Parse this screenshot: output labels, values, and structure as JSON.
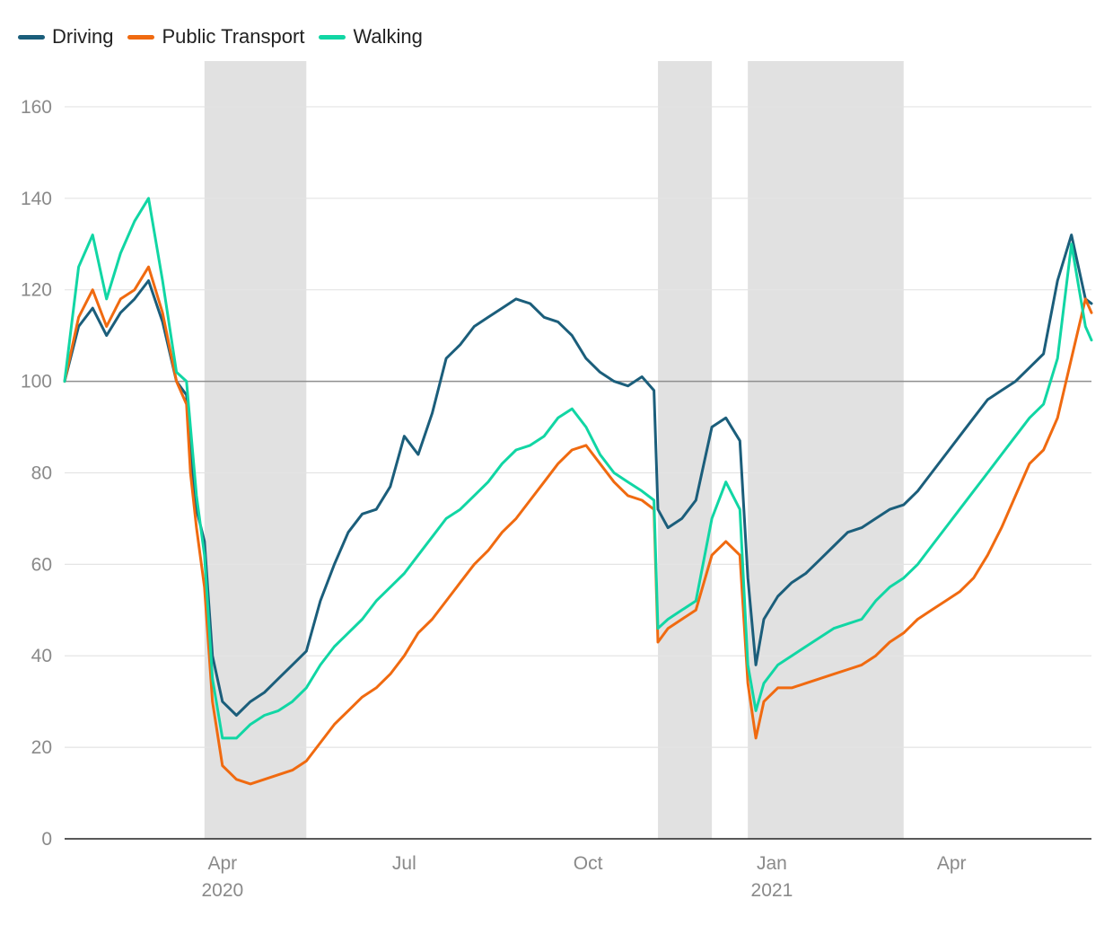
{
  "chart_data": {
    "type": "line",
    "title": "",
    "xlabel": "",
    "ylabel": "",
    "x_start": "2020-01-13",
    "x_end": "2021-06-10",
    "ylim": [
      0,
      170
    ],
    "yticks": [
      0,
      20,
      40,
      60,
      80,
      100,
      120,
      140,
      160
    ],
    "xticks": [
      {
        "date": "2020-04-01",
        "label": "Apr",
        "sublabel": "2020"
      },
      {
        "date": "2020-07-01",
        "label": "Jul",
        "sublabel": ""
      },
      {
        "date": "2020-10-01",
        "label": "Oct",
        "sublabel": ""
      },
      {
        "date": "2021-01-01",
        "label": "Jan",
        "sublabel": "2021"
      },
      {
        "date": "2021-04-01",
        "label": "Apr",
        "sublabel": ""
      }
    ],
    "baseline": 100,
    "grid": true,
    "legend_position": "top-left",
    "shaded_periods": [
      {
        "start": "2020-03-23",
        "end": "2020-05-13"
      },
      {
        "start": "2020-11-05",
        "end": "2020-12-02"
      },
      {
        "start": "2020-12-20",
        "end": "2021-03-08"
      }
    ],
    "series": [
      {
        "name": "Driving",
        "color": "#1b5e7b",
        "x": [
          "2020-01-13",
          "2020-01-20",
          "2020-01-27",
          "2020-02-03",
          "2020-02-10",
          "2020-02-17",
          "2020-02-24",
          "2020-03-02",
          "2020-03-09",
          "2020-03-14",
          "2020-03-16",
          "2020-03-19",
          "2020-03-23",
          "2020-03-27",
          "2020-04-01",
          "2020-04-08",
          "2020-04-15",
          "2020-04-22",
          "2020-04-29",
          "2020-05-06",
          "2020-05-13",
          "2020-05-20",
          "2020-05-27",
          "2020-06-03",
          "2020-06-10",
          "2020-06-17",
          "2020-06-24",
          "2020-07-01",
          "2020-07-08",
          "2020-07-15",
          "2020-07-22",
          "2020-07-29",
          "2020-08-05",
          "2020-08-12",
          "2020-08-19",
          "2020-08-26",
          "2020-09-02",
          "2020-09-09",
          "2020-09-16",
          "2020-09-23",
          "2020-09-30",
          "2020-10-07",
          "2020-10-14",
          "2020-10-21",
          "2020-10-28",
          "2020-11-03",
          "2020-11-05",
          "2020-11-10",
          "2020-11-17",
          "2020-11-24",
          "2020-12-02",
          "2020-12-09",
          "2020-12-16",
          "2020-12-20",
          "2020-12-24",
          "2020-12-28",
          "2021-01-04",
          "2021-01-11",
          "2021-01-18",
          "2021-01-25",
          "2021-02-01",
          "2021-02-08",
          "2021-02-15",
          "2021-02-22",
          "2021-03-01",
          "2021-03-08",
          "2021-03-15",
          "2021-03-22",
          "2021-03-29",
          "2021-04-05",
          "2021-04-12",
          "2021-04-19",
          "2021-04-26",
          "2021-05-03",
          "2021-05-10",
          "2021-05-17",
          "2021-05-24",
          "2021-05-31",
          "2021-06-07",
          "2021-06-10"
        ],
        "values": [
          100,
          112,
          116,
          110,
          115,
          118,
          122,
          113,
          100,
          97,
          85,
          72,
          65,
          40,
          30,
          27,
          30,
          32,
          35,
          38,
          41,
          52,
          60,
          67,
          71,
          72,
          77,
          88,
          84,
          93,
          105,
          108,
          112,
          114,
          116,
          118,
          117,
          114,
          113,
          110,
          105,
          102,
          100,
          99,
          101,
          98,
          72,
          68,
          70,
          74,
          90,
          92,
          87,
          57,
          38,
          48,
          53,
          56,
          58,
          61,
          64,
          67,
          68,
          70,
          72,
          73,
          76,
          80,
          84,
          88,
          92,
          96,
          98,
          100,
          103,
          106,
          122,
          132,
          118,
          117
        ]
      },
      {
        "name": "Public Transport",
        "color": "#f06a10",
        "x": [
          "2020-01-13",
          "2020-01-20",
          "2020-01-27",
          "2020-02-03",
          "2020-02-10",
          "2020-02-17",
          "2020-02-24",
          "2020-03-02",
          "2020-03-09",
          "2020-03-14",
          "2020-03-16",
          "2020-03-19",
          "2020-03-23",
          "2020-03-27",
          "2020-04-01",
          "2020-04-08",
          "2020-04-15",
          "2020-04-22",
          "2020-04-29",
          "2020-05-06",
          "2020-05-13",
          "2020-05-20",
          "2020-05-27",
          "2020-06-03",
          "2020-06-10",
          "2020-06-17",
          "2020-06-24",
          "2020-07-01",
          "2020-07-08",
          "2020-07-15",
          "2020-07-22",
          "2020-07-29",
          "2020-08-05",
          "2020-08-12",
          "2020-08-19",
          "2020-08-26",
          "2020-09-02",
          "2020-09-09",
          "2020-09-16",
          "2020-09-23",
          "2020-09-30",
          "2020-10-07",
          "2020-10-14",
          "2020-10-21",
          "2020-10-28",
          "2020-11-03",
          "2020-11-05",
          "2020-11-10",
          "2020-11-17",
          "2020-11-24",
          "2020-12-02",
          "2020-12-09",
          "2020-12-16",
          "2020-12-20",
          "2020-12-24",
          "2020-12-28",
          "2021-01-04",
          "2021-01-11",
          "2021-01-18",
          "2021-01-25",
          "2021-02-01",
          "2021-02-08",
          "2021-02-15",
          "2021-02-22",
          "2021-03-01",
          "2021-03-08",
          "2021-03-15",
          "2021-03-22",
          "2021-03-29",
          "2021-04-05",
          "2021-04-12",
          "2021-04-19",
          "2021-04-26",
          "2021-05-03",
          "2021-05-10",
          "2021-05-17",
          "2021-05-24",
          "2021-05-31",
          "2021-06-07",
          "2021-06-10"
        ],
        "values": [
          100,
          114,
          120,
          112,
          118,
          120,
          125,
          115,
          100,
          95,
          80,
          68,
          55,
          30,
          16,
          13,
          12,
          13,
          14,
          15,
          17,
          21,
          25,
          28,
          31,
          33,
          36,
          40,
          45,
          48,
          52,
          56,
          60,
          63,
          67,
          70,
          74,
          78,
          82,
          85,
          86,
          82,
          78,
          75,
          74,
          72,
          43,
          46,
          48,
          50,
          62,
          65,
          62,
          34,
          22,
          30,
          33,
          33,
          34,
          35,
          36,
          37,
          38,
          40,
          43,
          45,
          48,
          50,
          52,
          54,
          57,
          62,
          68,
          75,
          82,
          85,
          92,
          105,
          118,
          115
        ]
      },
      {
        "name": "Walking",
        "color": "#11d6a4",
        "x": [
          "2020-01-13",
          "2020-01-20",
          "2020-01-27",
          "2020-02-03",
          "2020-02-10",
          "2020-02-17",
          "2020-02-24",
          "2020-03-02",
          "2020-03-09",
          "2020-03-14",
          "2020-03-16",
          "2020-03-19",
          "2020-03-23",
          "2020-03-27",
          "2020-04-01",
          "2020-04-08",
          "2020-04-15",
          "2020-04-22",
          "2020-04-29",
          "2020-05-06",
          "2020-05-13",
          "2020-05-20",
          "2020-05-27",
          "2020-06-03",
          "2020-06-10",
          "2020-06-17",
          "2020-06-24",
          "2020-07-01",
          "2020-07-08",
          "2020-07-15",
          "2020-07-22",
          "2020-07-29",
          "2020-08-05",
          "2020-08-12",
          "2020-08-19",
          "2020-08-26",
          "2020-09-02",
          "2020-09-09",
          "2020-09-16",
          "2020-09-23",
          "2020-09-30",
          "2020-10-07",
          "2020-10-14",
          "2020-10-21",
          "2020-10-28",
          "2020-11-03",
          "2020-11-05",
          "2020-11-10",
          "2020-11-17",
          "2020-11-24",
          "2020-12-02",
          "2020-12-09",
          "2020-12-16",
          "2020-12-20",
          "2020-12-24",
          "2020-12-28",
          "2021-01-04",
          "2021-01-11",
          "2021-01-18",
          "2021-01-25",
          "2021-02-01",
          "2021-02-08",
          "2021-02-15",
          "2021-02-22",
          "2021-03-01",
          "2021-03-08",
          "2021-03-15",
          "2021-03-22",
          "2021-03-29",
          "2021-04-05",
          "2021-04-12",
          "2021-04-19",
          "2021-04-26",
          "2021-05-03",
          "2021-05-10",
          "2021-05-17",
          "2021-05-24",
          "2021-05-31",
          "2021-06-07",
          "2021-06-10"
        ],
        "values": [
          100,
          125,
          132,
          118,
          128,
          135,
          140,
          122,
          102,
          100,
          90,
          75,
          62,
          35,
          22,
          22,
          25,
          27,
          28,
          30,
          33,
          38,
          42,
          45,
          48,
          52,
          55,
          58,
          62,
          66,
          70,
          72,
          75,
          78,
          82,
          85,
          86,
          88,
          92,
          94,
          90,
          84,
          80,
          78,
          76,
          74,
          46,
          48,
          50,
          52,
          70,
          78,
          72,
          38,
          28,
          34,
          38,
          40,
          42,
          44,
          46,
          47,
          48,
          52,
          55,
          57,
          60,
          64,
          68,
          72,
          76,
          80,
          84,
          88,
          92,
          95,
          105,
          130,
          112,
          109
        ]
      }
    ]
  }
}
